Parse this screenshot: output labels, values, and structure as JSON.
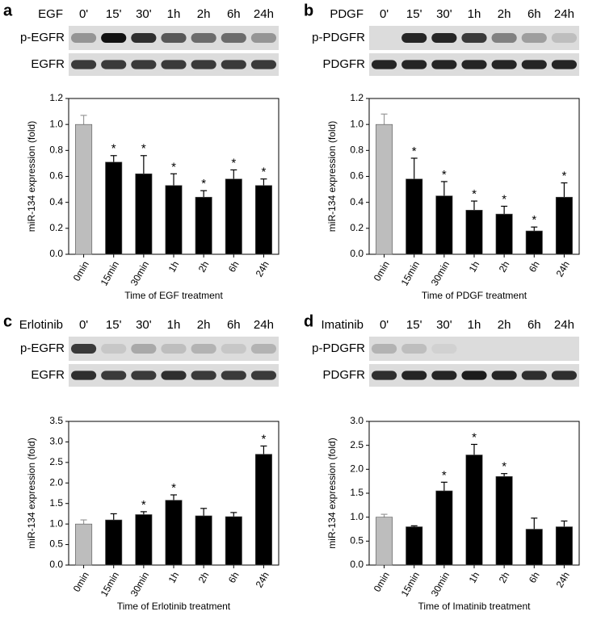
{
  "panels": [
    {
      "letter": "a",
      "blot": {
        "treatment": "EGF",
        "times": [
          "0'",
          "15'",
          "30'",
          "1h",
          "2h",
          "6h",
          "24h"
        ],
        "rows": [
          "p-EGFR",
          "EGFR"
        ]
      }
    },
    {
      "letter": "b",
      "blot": {
        "treatment": "PDGF",
        "times": [
          "0'",
          "15'",
          "30'",
          "1h",
          "2h",
          "6h",
          "24h"
        ],
        "rows": [
          "p-PDGFR",
          "PDGFR"
        ]
      }
    },
    {
      "letter": "c",
      "blot": {
        "treatment": "Erlotinib",
        "times": [
          "0'",
          "15'",
          "30'",
          "1h",
          "2h",
          "6h",
          "24h"
        ],
        "rows": [
          "p-EGFR",
          "EGFR"
        ]
      }
    },
    {
      "letter": "d",
      "blot": {
        "treatment": "Imatinib",
        "times": [
          "0'",
          "15'",
          "30'",
          "1h",
          "2h",
          "6h",
          "24h"
        ],
        "rows": [
          "p-PDGFR",
          "PDGFR"
        ]
      }
    }
  ],
  "chart_data": [
    {
      "type": "bar",
      "x_label": "Time of EGF treatment",
      "y_label": "miR-134 expression (fold)",
      "categories": [
        "0min",
        "15min",
        "30min",
        "1h",
        "2h",
        "6h",
        "24h"
      ],
      "values": [
        1.0,
        0.71,
        0.62,
        0.53,
        0.44,
        0.58,
        0.53
      ],
      "errors": [
        0.07,
        0.05,
        0.14,
        0.09,
        0.05,
        0.07,
        0.05
      ],
      "markers": [
        null,
        "*",
        "*",
        "*",
        "*",
        "*",
        "*"
      ],
      "colors": [
        "#bdbdbd",
        "#000000",
        "#000000",
        "#000000",
        "#000000",
        "#000000",
        "#000000"
      ],
      "ylim": [
        0,
        1.2
      ],
      "yticks": [
        {
          "value": 0,
          "label": "0.0"
        },
        0.2,
        0.4,
        0.6,
        0.8,
        {
          "value": 1,
          "label": "1.0"
        },
        1.2
      ]
    },
    {
      "type": "bar",
      "x_label": "Time of PDGF treatment",
      "y_label": "miR-134 expression (fold)",
      "categories": [
        "0min",
        "15min",
        "30min",
        "1h",
        "2h",
        "6h",
        "24h"
      ],
      "values": [
        1.0,
        0.58,
        0.45,
        0.34,
        0.31,
        0.18,
        0.44
      ],
      "errors": [
        0.08,
        0.16,
        0.11,
        0.07,
        0.06,
        0.03,
        0.11
      ],
      "markers": [
        null,
        "*",
        "*",
        "*",
        "*",
        "*",
        "*"
      ],
      "colors": [
        "#bdbdbd",
        "#000000",
        "#000000",
        "#000000",
        "#000000",
        "#000000",
        "#000000"
      ],
      "ylim": [
        0,
        1.2
      ],
      "yticks": [
        {
          "value": 0,
          "label": "0.0"
        },
        0.2,
        0.4,
        0.6,
        0.8,
        {
          "value": 1,
          "label": "1.0"
        },
        1.2
      ]
    },
    {
      "type": "bar",
      "x_label": "Time of Erlotinib treatment",
      "y_label": "miR-134 expression (fold)",
      "categories": [
        "0min",
        "15min",
        "30min",
        "1h",
        "2h",
        "6h",
        "24h"
      ],
      "values": [
        1.0,
        1.1,
        1.23,
        1.58,
        1.2,
        1.18,
        2.7
      ],
      "errors": [
        0.1,
        0.15,
        0.07,
        0.13,
        0.18,
        0.1,
        0.2
      ],
      "markers": [
        null,
        null,
        "*",
        "*",
        null,
        null,
        "*"
      ],
      "colors": [
        "#bdbdbd",
        "#000000",
        "#000000",
        "#000000",
        "#000000",
        "#000000",
        "#000000"
      ],
      "ylim": [
        0,
        3.5
      ],
      "yticks": [
        {
          "value": 0,
          "label": "0.0"
        },
        0.5,
        {
          "value": 1,
          "label": "1.0"
        },
        1.5,
        {
          "value": 2,
          "label": "2.0"
        },
        2.5,
        {
          "value": 3,
          "label": "3.0"
        },
        3.5
      ]
    },
    {
      "type": "bar",
      "x_label": "Time of Imatinib treatment",
      "y_label": "miR-134 expression (fold)",
      "categories": [
        "0min",
        "15min",
        "30min",
        "1h",
        "2h",
        "6h",
        "24h"
      ],
      "values": [
        1.0,
        0.8,
        1.55,
        2.3,
        1.85,
        0.75,
        0.8
      ],
      "errors": [
        0.06,
        0.02,
        0.18,
        0.22,
        0.06,
        0.23,
        0.12
      ],
      "markers": [
        null,
        null,
        "*",
        "*",
        "*",
        null,
        null
      ],
      "colors": [
        "#bdbdbd",
        "#000000",
        "#000000",
        "#000000",
        "#000000",
        "#000000",
        "#000000"
      ],
      "ylim": [
        0,
        3.0
      ],
      "yticks": [
        {
          "value": 0,
          "label": "0.0"
        },
        0.5,
        {
          "value": 1,
          "label": "1.0"
        },
        1.5,
        {
          "value": 2,
          "label": "2.0"
        },
        2.5,
        {
          "value": 3,
          "label": "3.0"
        }
      ]
    }
  ]
}
